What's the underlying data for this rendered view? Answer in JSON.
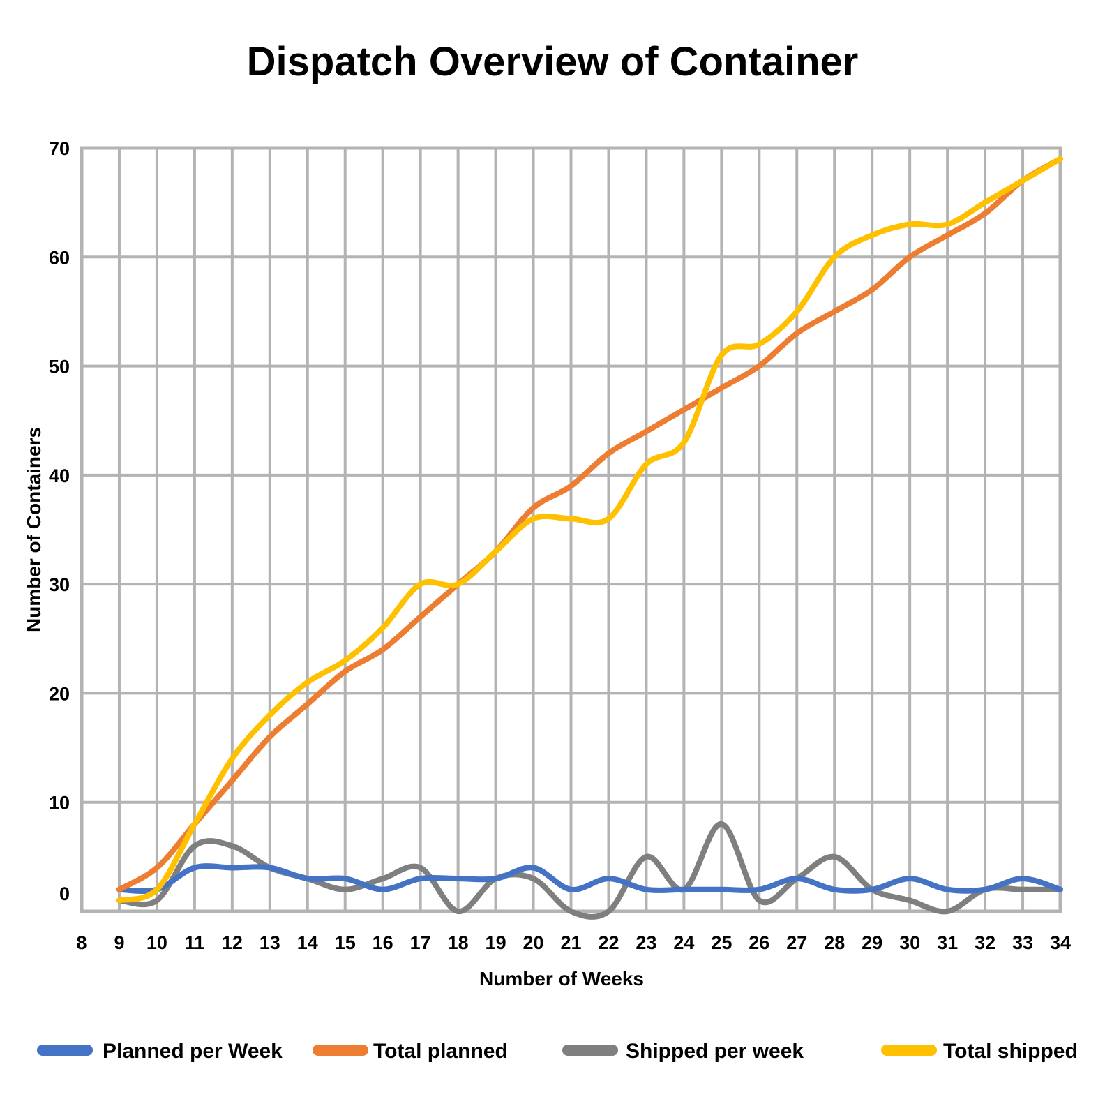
{
  "chart_data": {
    "type": "line",
    "title": "Dispatch Overview of Container",
    "xlabel": "Number of Weeks",
    "ylabel": "Number of Containers",
    "xlim": [
      8,
      34
    ],
    "ylim": [
      0,
      70
    ],
    "x_ticks": [
      "8",
      "9",
      "10",
      "11",
      "12",
      "13",
      "14",
      "15",
      "16",
      "17",
      "18",
      "19",
      "20",
      "21",
      "22",
      "23",
      "24",
      "25",
      "26",
      "27",
      "28",
      "29",
      "30",
      "31",
      "32",
      "33",
      "34"
    ],
    "y_ticks": [
      "0",
      "10",
      "20",
      "30",
      "40",
      "50",
      "60",
      "70"
    ],
    "grid": true,
    "smooth": true,
    "legend_position": "bottom",
    "x": [
      9,
      10,
      11,
      12,
      13,
      14,
      15,
      16,
      17,
      18,
      19,
      20,
      21,
      22,
      23,
      24,
      25,
      26,
      27,
      28,
      29,
      30,
      31,
      32,
      33,
      34
    ],
    "series": [
      {
        "name": "Planned per Week",
        "color": "#4472c4",
        "values": [
          2,
          2,
          4,
          4,
          4,
          3,
          3,
          2,
          3,
          3,
          3,
          4,
          2,
          3,
          2,
          2,
          2,
          2,
          3,
          2,
          2,
          3,
          2,
          2,
          3,
          2
        ]
      },
      {
        "name": "Total planned",
        "color": "#ed7d31",
        "values": [
          2,
          4,
          8,
          12,
          16,
          19,
          22,
          24,
          27,
          30,
          33,
          37,
          39,
          42,
          44,
          46,
          48,
          50,
          53,
          55,
          57,
          60,
          62,
          64,
          67,
          69
        ]
      },
      {
        "name": "Shipped per week",
        "color": "#7f7f7f",
        "values": [
          1,
          1,
          6,
          6,
          4,
          3,
          2,
          3,
          4,
          0,
          3,
          3,
          0,
          0,
          5,
          2,
          8,
          1,
          3,
          5,
          2,
          1,
          0,
          2,
          2,
          2
        ]
      },
      {
        "name": "Total shipped",
        "color": "#ffc000",
        "values": [
          1,
          2,
          8,
          14,
          18,
          21,
          23,
          26,
          30,
          30,
          33,
          36,
          36,
          36,
          41,
          43,
          51,
          52,
          55,
          60,
          62,
          63,
          63,
          65,
          67,
          69
        ]
      }
    ]
  }
}
